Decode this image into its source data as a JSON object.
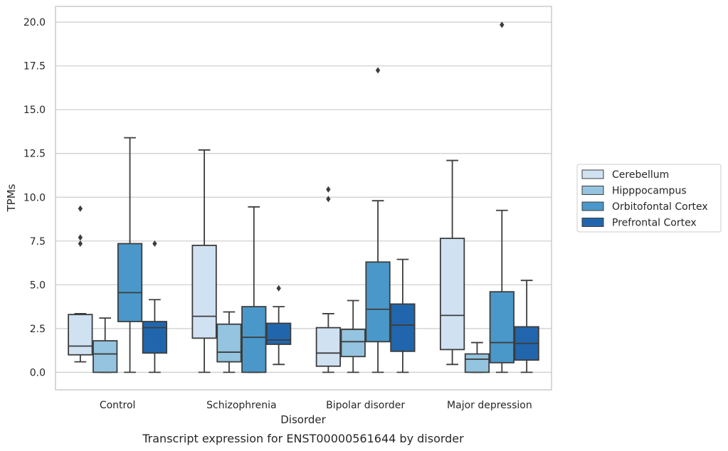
{
  "chart_data": {
    "type": "boxplot",
    "title": "",
    "caption": "Transcript expression for ENST00000561644 by disorder",
    "xlabel": "Disorder",
    "ylabel": "TPMs",
    "ylim": [
      -1.0,
      20.9
    ],
    "yticks": [
      0.0,
      2.5,
      5.0,
      7.5,
      10.0,
      12.5,
      15.0,
      17.5,
      20.0
    ],
    "ytick_labels": [
      "0.0",
      "2.5",
      "5.0",
      "7.5",
      "10.0",
      "12.5",
      "15.0",
      "17.5",
      "20.0"
    ],
    "grid": "horizontal",
    "legend_position": "right",
    "categories": [
      "Control",
      "Schizophrenia",
      "Bipolar disorder",
      "Major depression"
    ],
    "series": [
      {
        "name": "Cerebellum",
        "color": "#d0e1f2",
        "boxes": [
          {
            "whisker_low": 0.6,
            "q1": 1.0,
            "median": 1.5,
            "q3": 3.3,
            "whisker_high": 3.35,
            "outliers": [
              7.35,
              7.7,
              9.35
            ]
          },
          {
            "whisker_low": 0.0,
            "q1": 1.95,
            "median": 3.2,
            "q3": 7.25,
            "whisker_high": 12.7,
            "outliers": []
          },
          {
            "whisker_low": 0.0,
            "q1": 0.35,
            "median": 1.1,
            "q3": 2.55,
            "whisker_high": 3.35,
            "outliers": [
              9.9,
              10.45
            ]
          },
          {
            "whisker_low": 0.45,
            "q1": 1.3,
            "median": 3.25,
            "q3": 7.65,
            "whisker_high": 12.1,
            "outliers": []
          }
        ]
      },
      {
        "name": "Hipppocampus",
        "color": "#94c4df",
        "boxes": [
          {
            "whisker_low": 0.0,
            "q1": 0.0,
            "median": 1.05,
            "q3": 1.8,
            "whisker_high": 3.1,
            "outliers": []
          },
          {
            "whisker_low": 0.0,
            "q1": 0.6,
            "median": 1.15,
            "q3": 2.75,
            "whisker_high": 3.45,
            "outliers": []
          },
          {
            "whisker_low": 0.0,
            "q1": 0.9,
            "median": 1.75,
            "q3": 2.45,
            "whisker_high": 4.1,
            "outliers": []
          },
          {
            "whisker_low": 0.0,
            "q1": 0.0,
            "median": 0.75,
            "q3": 1.05,
            "whisker_high": 1.7,
            "outliers": []
          }
        ]
      },
      {
        "name": "Orbitofontal Cortex",
        "color": "#4a98c9",
        "boxes": [
          {
            "whisker_low": 0.0,
            "q1": 2.9,
            "median": 4.55,
            "q3": 7.35,
            "whisker_high": 13.4,
            "outliers": []
          },
          {
            "whisker_low": 0.0,
            "q1": 0.0,
            "median": 2.0,
            "q3": 3.75,
            "whisker_high": 9.45,
            "outliers": []
          },
          {
            "whisker_low": 0.0,
            "q1": 1.75,
            "median": 3.6,
            "q3": 6.3,
            "whisker_high": 9.8,
            "outliers": [
              17.25
            ]
          },
          {
            "whisker_low": 0.0,
            "q1": 0.55,
            "median": 1.7,
            "q3": 4.6,
            "whisker_high": 9.25,
            "outliers": [
              19.85
            ]
          }
        ]
      },
      {
        "name": "Prefrontal Cortex",
        "color": "#2166ac",
        "boxes": [
          {
            "whisker_low": 0.0,
            "q1": 1.1,
            "median": 2.55,
            "q3": 2.9,
            "whisker_high": 4.15,
            "outliers": [
              7.35
            ]
          },
          {
            "whisker_low": 0.45,
            "q1": 1.6,
            "median": 1.85,
            "q3": 2.8,
            "whisker_high": 3.75,
            "outliers": [
              4.8
            ]
          },
          {
            "whisker_low": 0.0,
            "q1": 1.2,
            "median": 2.7,
            "q3": 3.9,
            "whisker_high": 6.45,
            "outliers": []
          },
          {
            "whisker_low": 0.0,
            "q1": 0.7,
            "median": 1.65,
            "q3": 2.6,
            "whisker_high": 5.25,
            "outliers": []
          }
        ]
      }
    ]
  }
}
